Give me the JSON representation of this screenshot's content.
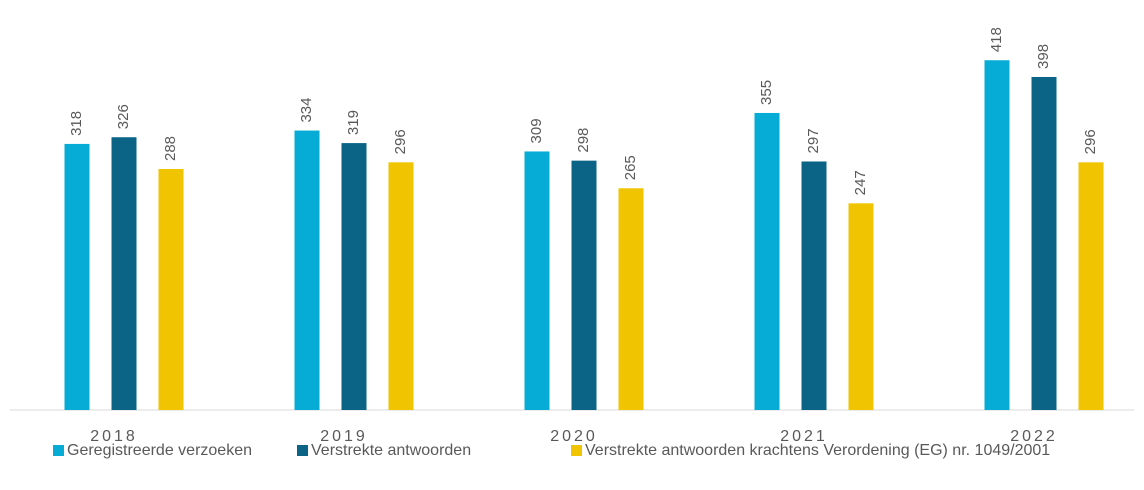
{
  "chart_data": {
    "type": "bar",
    "categories": [
      "2018",
      "2019",
      "2020",
      "2021",
      "2022"
    ],
    "series": [
      {
        "name": "Geregistreerde verzoeken",
        "color": "#06acd6",
        "values": [
          318,
          334,
          309,
          355,
          418
        ]
      },
      {
        "name": "Verstrekte antwoorden",
        "color": "#0b6486",
        "values": [
          326,
          319,
          298,
          297,
          398
        ]
      },
      {
        "name": "Verstrekte antwoorden krachtens Verordening (EG) nr. 1049/2001",
        "color": "#f0c400",
        "values": [
          288,
          296,
          265,
          247,
          296
        ]
      }
    ],
    "ylim": [
      0,
      490
    ],
    "legend": "bottom"
  }
}
